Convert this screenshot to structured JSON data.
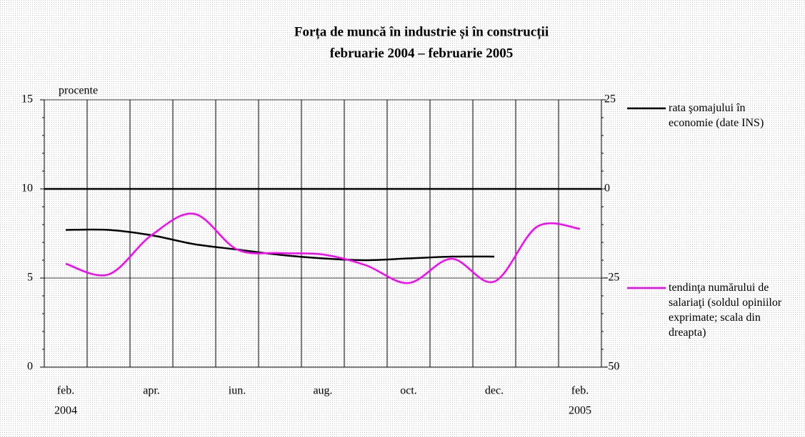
{
  "chart_data": {
    "type": "line",
    "title": "Forța de muncă în industrie și în construcții",
    "subtitle": "februarie 2004 – februarie 2005",
    "ylabel": "procente",
    "categories": [
      "feb.",
      null,
      "apr.",
      null,
      "iun.",
      null,
      "aug.",
      null,
      "oct.",
      null,
      "dec.",
      null,
      "feb."
    ],
    "x_sublabels": [
      "2004",
      null,
      null,
      null,
      null,
      null,
      null,
      null,
      null,
      null,
      null,
      null,
      "2005"
    ],
    "series": [
      {
        "name": "rata şomajului în economie (date INS)",
        "color": "#000000",
        "axis": "y",
        "values": [
          7.7,
          7.7,
          7.4,
          6.9,
          6.6,
          6.3,
          6.1,
          6.0,
          6.1,
          6.2,
          6.2,
          null,
          null
        ]
      },
      {
        "name": "tendinţa numărului de salariaţi (soldul opiniilor exprimate; scala din dreapta)",
        "color": "#ff00ff",
        "axis": "y2",
        "values": [
          -21,
          -24,
          -13,
          -7,
          -17,
          -18,
          -18.4,
          -21.4,
          -26.4,
          -19.6,
          -26,
          -10.6,
          -11.2
        ]
      }
    ],
    "ylim": [
      0,
      15
    ],
    "yticks": [
      0,
      5,
      10,
      15
    ],
    "y2lim": [
      -50,
      25
    ],
    "y2ticks": [
      -50,
      -25,
      0,
      25
    ],
    "grid": true,
    "zero_line": "y2",
    "legend": "right"
  }
}
